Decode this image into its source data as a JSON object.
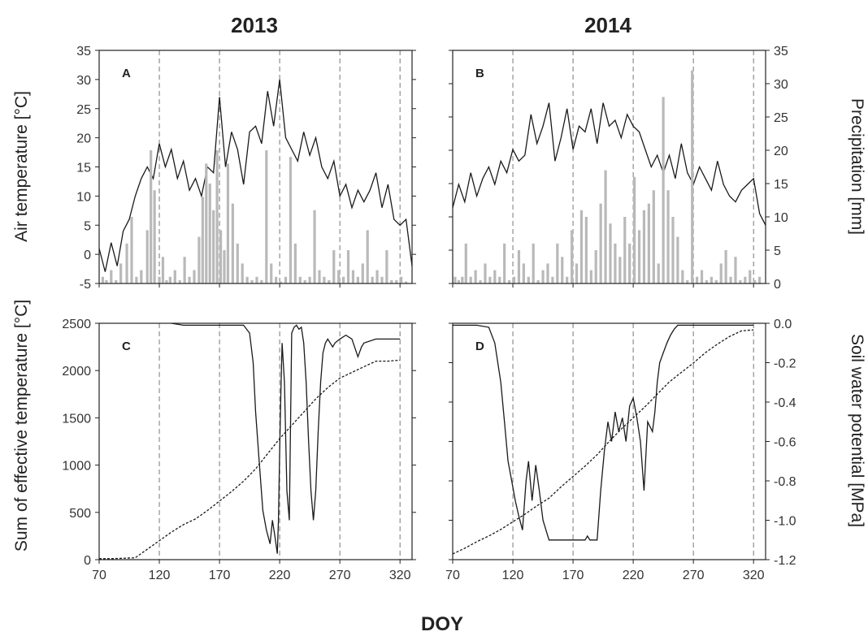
{
  "figure": {
    "col_titles": [
      "2013",
      "2014"
    ],
    "xlabel": "DOY",
    "ylabel_left_top": "Air temperature [°C]",
    "ylabel_right_top": "Precipitation [mm]",
    "ylabel_left_bottom": "Sum of effective temperature [°C]",
    "ylabel_right_bottom": "Soil water potential [MPa]"
  },
  "colors": {
    "temperature": "#1a1a1a",
    "precipitation": "#b9b9b9",
    "reference_lines": "#777777"
  },
  "chart_data": [
    {
      "panel": "A",
      "year": "2013",
      "type": "line",
      "xlim": [
        70,
        330
      ],
      "ylim": [
        -5,
        35
      ],
      "y2lim": [
        0,
        35
      ],
      "x_ticks": [
        "70",
        "120",
        "170",
        "220",
        "270",
        "320"
      ],
      "y_ticks": [
        "-5",
        "0",
        "5",
        "10",
        "15",
        "20",
        "25",
        "30",
        "35"
      ],
      "reference_lines_x": [
        120,
        170,
        220,
        270,
        320
      ],
      "series": [
        {
          "name": "",
          "axis": "left",
          "style": "solid",
          "type": "line",
          "x": [
            70,
            75,
            80,
            85,
            90,
            95,
            100,
            105,
            110,
            115,
            120,
            125,
            130,
            135,
            140,
            145,
            150,
            155,
            160,
            165,
            170,
            175,
            180,
            185,
            190,
            195,
            200,
            205,
            210,
            215,
            220,
            225,
            230,
            235,
            240,
            245,
            250,
            255,
            260,
            265,
            270,
            275,
            280,
            285,
            290,
            295,
            300,
            305,
            310,
            315,
            320,
            325,
            330
          ],
          "y": [
            1,
            -3,
            2,
            -2,
            4,
            6,
            10,
            13,
            15,
            13,
            19,
            15,
            18,
            13,
            16,
            11,
            13,
            10,
            15,
            14,
            27,
            15,
            21,
            18,
            12,
            21,
            22,
            19,
            28,
            22,
            30,
            20,
            18,
            16,
            21,
            17,
            20,
            15,
            13,
            16,
            10,
            12,
            8,
            11,
            9,
            11,
            14,
            8,
            12,
            6,
            5,
            6,
            -2
          ]
        },
        {
          "name": "",
          "axis": "right",
          "type": "bar",
          "x": [
            73,
            76,
            80,
            84,
            88,
            93,
            97,
            101,
            105,
            110,
            113,
            116,
            120,
            123,
            126,
            129,
            133,
            137,
            141,
            145,
            149,
            153,
            156,
            159,
            162,
            165,
            168,
            171,
            174,
            177,
            181,
            185,
            189,
            193,
            197,
            201,
            205,
            209,
            213,
            217,
            221,
            225,
            229,
            233,
            237,
            241,
            245,
            249,
            253,
            257,
            261,
            265,
            269,
            273,
            277,
            281,
            285,
            289,
            293,
            297,
            301,
            305,
            309,
            313,
            317,
            321,
            325
          ],
          "y": [
            1,
            0.5,
            2,
            0.5,
            3,
            6,
            10,
            1,
            2,
            8,
            20,
            14,
            1,
            4,
            0.5,
            1,
            2,
            0.5,
            4,
            1,
            2,
            7,
            13,
            18,
            15,
            11,
            20,
            8,
            5,
            18,
            12,
            6,
            3,
            1,
            0.5,
            1,
            0.5,
            20,
            3,
            1,
            0.3,
            1,
            19,
            6,
            1,
            0.5,
            1,
            11,
            2,
            1,
            0.5,
            5,
            2,
            1,
            5,
            2,
            1,
            3,
            8,
            1,
            2,
            1,
            5,
            0.5,
            0.5,
            1,
            0.3
          ]
        }
      ]
    },
    {
      "panel": "B",
      "year": "2014",
      "type": "line",
      "xlim": [
        70,
        330
      ],
      "ylim": [
        -5,
        35
      ],
      "y2lim": [
        0,
        35
      ],
      "x_ticks": [
        "70",
        "120",
        "170",
        "220",
        "270",
        "320"
      ],
      "y2_ticks": [
        "0",
        "5",
        "10",
        "15",
        "20",
        "25",
        "30",
        "35"
      ],
      "reference_lines_x": [
        120,
        170,
        220,
        270,
        320
      ],
      "series": [
        {
          "name": "",
          "axis": "left",
          "style": "solid",
          "type": "line",
          "x": [
            70,
            75,
            80,
            85,
            90,
            95,
            100,
            105,
            110,
            115,
            120,
            125,
            130,
            135,
            140,
            145,
            150,
            155,
            160,
            165,
            170,
            175,
            180,
            185,
            190,
            195,
            200,
            205,
            210,
            215,
            220,
            225,
            230,
            235,
            240,
            245,
            250,
            255,
            260,
            265,
            270,
            275,
            280,
            285,
            290,
            295,
            300,
            305,
            310,
            315,
            320,
            325,
            330
          ],
          "y": [
            8,
            12,
            9,
            14,
            10,
            13,
            15,
            12,
            16,
            14,
            18,
            16,
            17,
            24,
            19,
            22,
            26,
            16,
            20,
            25,
            18,
            22,
            21,
            25,
            19,
            26,
            22,
            23,
            20,
            24,
            22,
            21,
            18,
            15,
            17,
            14,
            17,
            13,
            19,
            14,
            12,
            15,
            13,
            11,
            16,
            12,
            10,
            9,
            11,
            12,
            13,
            7,
            5
          ]
        },
        {
          "name": "",
          "axis": "right",
          "type": "bar",
          "x": [
            72,
            75,
            78,
            81,
            85,
            89,
            93,
            97,
            101,
            105,
            109,
            113,
            117,
            121,
            125,
            129,
            133,
            137,
            141,
            145,
            149,
            153,
            157,
            161,
            165,
            169,
            173,
            177,
            181,
            185,
            189,
            193,
            197,
            201,
            205,
            209,
            213,
            217,
            221,
            225,
            229,
            233,
            237,
            241,
            245,
            249,
            253,
            257,
            261,
            265,
            269,
            273,
            277,
            281,
            285,
            289,
            293,
            297,
            301,
            305,
            309,
            313,
            317,
            321,
            325
          ],
          "y": [
            1,
            0.5,
            1,
            6,
            1,
            2,
            0.5,
            3,
            1,
            2,
            1,
            6,
            0.5,
            1,
            5,
            3,
            1,
            6,
            0.5,
            2,
            3,
            1,
            6,
            4,
            1,
            8,
            3,
            11,
            10,
            2,
            5,
            12,
            17,
            9,
            6,
            4,
            10,
            6,
            16,
            8,
            11,
            12,
            14,
            3,
            28,
            14,
            10,
            7,
            2,
            0.5,
            32,
            1,
            2,
            0.5,
            1,
            0.5,
            3,
            5,
            1,
            4,
            0.5,
            1,
            2,
            0.5,
            1
          ]
        }
      ]
    },
    {
      "panel": "C",
      "year": "2013",
      "type": "line",
      "xlim": [
        70,
        330
      ],
      "ylim": [
        0,
        2500
      ],
      "y2lim": [
        -1.2,
        0
      ],
      "x_ticks": [
        "70",
        "120",
        "170",
        "220",
        "270",
        "320"
      ],
      "y_ticks": [
        "0",
        "500",
        "1000",
        "1500",
        "2000",
        "2500"
      ],
      "reference_lines_x": [
        120,
        170,
        220,
        270,
        320
      ],
      "series": [
        {
          "name": "",
          "axis": "left",
          "style": "dashed",
          "type": "line",
          "x": [
            70,
            80,
            90,
            100,
            110,
            120,
            130,
            140,
            150,
            160,
            170,
            180,
            190,
            200,
            210,
            220,
            230,
            240,
            250,
            260,
            270,
            280,
            290,
            300,
            310,
            320
          ],
          "y": [
            10,
            10,
            15,
            20,
            110,
            200,
            290,
            370,
            430,
            520,
            620,
            720,
            830,
            960,
            1120,
            1280,
            1420,
            1560,
            1700,
            1820,
            1920,
            1980,
            2040,
            2100,
            2100,
            2110
          ]
        },
        {
          "name": "",
          "axis": "right",
          "style": "solid",
          "type": "line",
          "x": [
            130,
            140,
            150,
            160,
            170,
            180,
            190,
            195,
            198,
            200,
            203,
            206,
            209,
            212,
            214,
            216,
            218,
            219,
            220,
            221,
            222,
            224,
            226,
            228,
            230,
            232,
            234,
            236,
            238,
            240,
            242,
            244,
            246,
            248,
            250,
            252,
            254,
            256,
            258,
            260,
            262,
            264,
            266,
            268,
            270,
            275,
            280,
            285,
            288,
            290,
            300,
            310,
            320
          ],
          "y": [
            0,
            -0.01,
            -0.01,
            -0.01,
            -0.01,
            -0.01,
            -0.01,
            -0.05,
            -0.2,
            -0.45,
            -0.7,
            -0.95,
            -1.05,
            -1.12,
            -1.0,
            -1.08,
            -1.17,
            -1.0,
            -0.65,
            -0.35,
            -0.1,
            -0.3,
            -0.85,
            -1.0,
            -0.05,
            -0.02,
            -0.01,
            -0.03,
            -0.02,
            -0.1,
            -0.3,
            -0.6,
            -0.85,
            -1.0,
            -0.85,
            -0.55,
            -0.3,
            -0.15,
            -0.1,
            -0.08,
            -0.1,
            -0.12,
            -0.1,
            -0.09,
            -0.08,
            -0.06,
            -0.08,
            -0.17,
            -0.12,
            -0.1,
            -0.08,
            -0.08,
            -0.08
          ]
        }
      ]
    },
    {
      "panel": "D",
      "year": "2014",
      "type": "line",
      "xlim": [
        70,
        330
      ],
      "ylim": [
        0,
        2500
      ],
      "y2lim": [
        -1.2,
        0
      ],
      "x_ticks": [
        "70",
        "120",
        "170",
        "220",
        "270",
        "320"
      ],
      "y2_ticks": [
        "0.0",
        "-0.2",
        "-0.4",
        "-0.6",
        "-0.8",
        "-1.0",
        "-1.2"
      ],
      "reference_lines_x": [
        120,
        170,
        220,
        270,
        320
      ],
      "series": [
        {
          "name": "",
          "axis": "left",
          "style": "dashed",
          "type": "line",
          "x": [
            70,
            80,
            90,
            100,
            110,
            120,
            130,
            140,
            150,
            160,
            170,
            180,
            190,
            200,
            210,
            220,
            230,
            240,
            250,
            260,
            270,
            280,
            290,
            300,
            310,
            320
          ],
          "y": [
            60,
            120,
            190,
            250,
            320,
            400,
            480,
            570,
            650,
            770,
            880,
            990,
            1110,
            1250,
            1380,
            1500,
            1620,
            1750,
            1880,
            1980,
            2080,
            2190,
            2280,
            2360,
            2420,
            2430
          ]
        },
        {
          "name": "",
          "axis": "right",
          "style": "solid",
          "type": "line",
          "x": [
            70,
            90,
            100,
            105,
            110,
            113,
            116,
            119,
            122,
            125,
            128,
            131,
            133,
            136,
            139,
            142,
            145,
            150,
            155,
            160,
            165,
            170,
            175,
            180,
            182,
            184,
            186,
            190,
            193,
            196,
            199,
            202,
            205,
            208,
            211,
            214,
            217,
            220,
            223,
            226,
            229,
            232,
            236,
            238,
            240,
            242,
            245,
            248,
            251,
            254,
            257,
            260,
            270,
            280,
            290,
            300,
            310,
            320
          ],
          "y": [
            -0.01,
            -0.01,
            -0.02,
            -0.1,
            -0.3,
            -0.5,
            -0.7,
            -0.8,
            -0.9,
            -0.98,
            -1.05,
            -0.8,
            -0.7,
            -0.9,
            -0.72,
            -0.85,
            -1.0,
            -1.1,
            -1.1,
            -1.1,
            -1.1,
            -1.1,
            -1.1,
            -1.1,
            -1.08,
            -1.1,
            -1.1,
            -1.1,
            -0.85,
            -0.65,
            -0.5,
            -0.6,
            -0.45,
            -0.55,
            -0.48,
            -0.6,
            -0.42,
            -0.38,
            -0.48,
            -0.6,
            -0.85,
            -0.5,
            -0.55,
            -0.45,
            -0.3,
            -0.2,
            -0.15,
            -0.1,
            -0.06,
            -0.03,
            -0.01,
            -0.01,
            -0.01,
            -0.01,
            -0.01,
            -0.01,
            -0.01,
            -0.01
          ]
        }
      ]
    }
  ]
}
